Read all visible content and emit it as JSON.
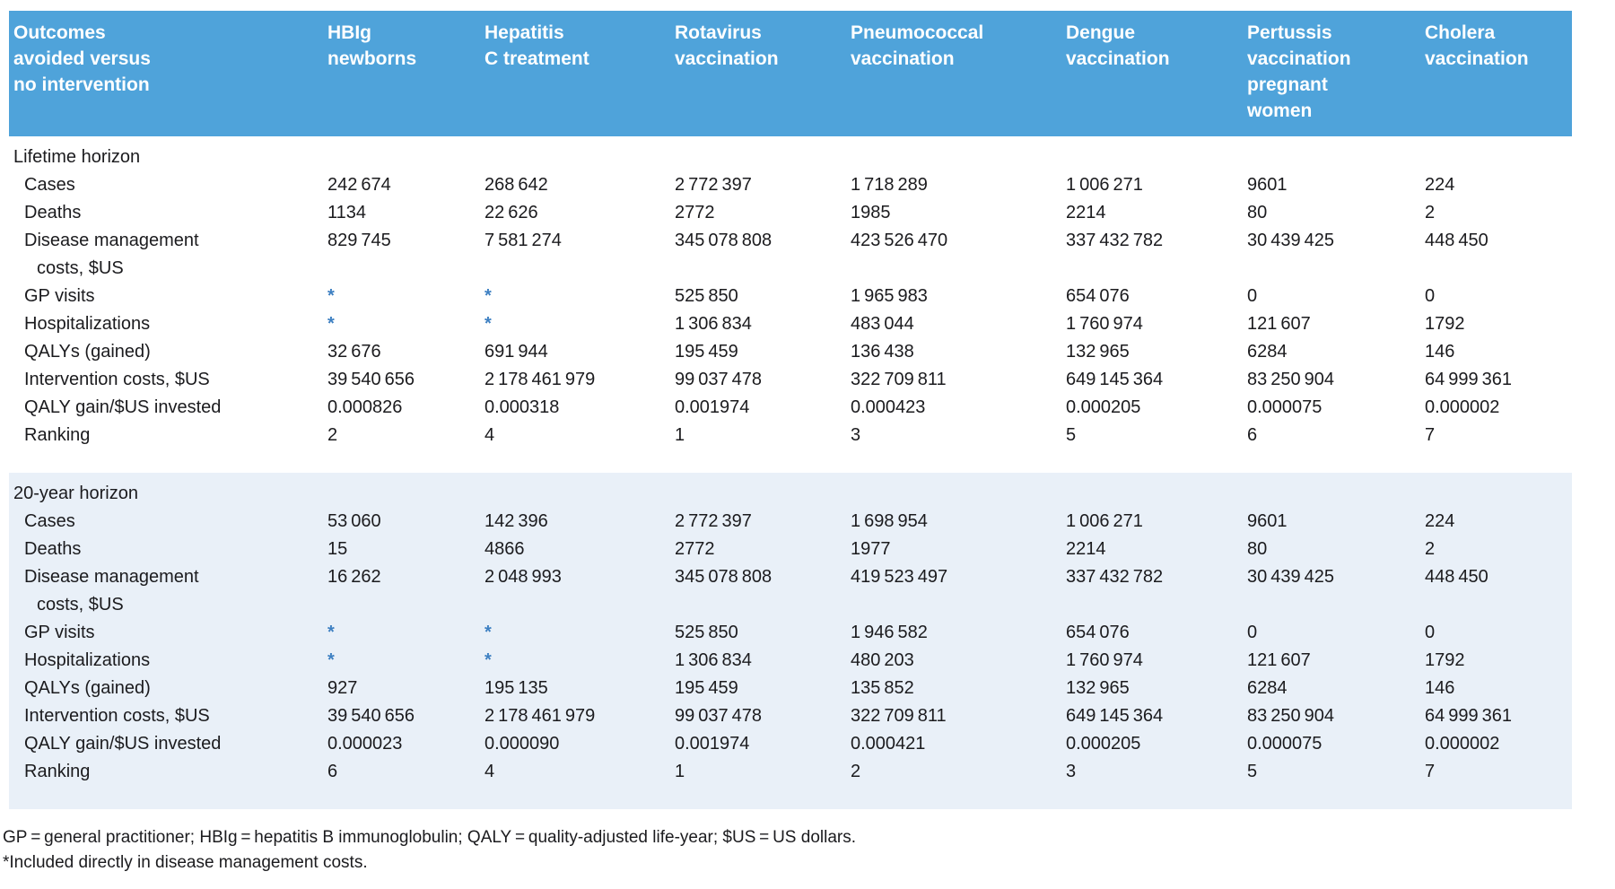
{
  "colors": {
    "header_bg": "#4FA3DA",
    "header_text": "#FFFFFF",
    "section_alt_bg": "#E9F0F8",
    "body_text": "#1B1B1E",
    "asterisk_blue": "#3E80C2"
  },
  "table": {
    "columns": [
      {
        "id": "outcomes",
        "lines": [
          "Outcomes",
          "avoided versus",
          "no intervention"
        ]
      },
      {
        "id": "hbig-newborns",
        "lines": [
          "HBIg",
          "newborns"
        ]
      },
      {
        "id": "hepatitis-c-treatment",
        "lines": [
          "Hepatitis",
          "C treatment"
        ]
      },
      {
        "id": "rotavirus-vaccination",
        "lines": [
          "Rotavirus",
          "vaccination"
        ]
      },
      {
        "id": "pneumococcal-vaccination",
        "lines": [
          "Pneumococcal",
          "vaccination"
        ]
      },
      {
        "id": "dengue-vaccination",
        "lines": [
          "Dengue",
          "vaccination"
        ]
      },
      {
        "id": "pertussis-vaccination-pregnant-women",
        "lines": [
          "Pertussis",
          "vaccination",
          "pregnant",
          "women"
        ]
      },
      {
        "id": "cholera-vaccination",
        "lines": [
          "Cholera",
          "vaccination"
        ]
      }
    ],
    "sections": [
      {
        "id": "lifetime",
        "title": "Lifetime horizon",
        "rows": [
          {
            "id": "cases",
            "label_lines": [
              "Cases"
            ],
            "values": [
              "242 674",
              "268 642",
              "2 772 397",
              "1 718 289",
              "1 006 271",
              "9601",
              "224"
            ]
          },
          {
            "id": "deaths",
            "label_lines": [
              "Deaths"
            ],
            "values": [
              "1134",
              "22 626",
              "2772",
              "1985",
              "2214",
              "80",
              "2"
            ]
          },
          {
            "id": "disease-management-costs",
            "label_lines": [
              "Disease management",
              "costs, $US"
            ],
            "values": [
              "829 745",
              "7 581 274",
              "345 078 808",
              "423 526 470",
              "337 432 782",
              "30 439 425",
              "448 450"
            ]
          },
          {
            "id": "gp-visits",
            "label_lines": [
              "GP visits"
            ],
            "values": [
              "*",
              "*",
              "525 850",
              "1 965 983",
              "654 076",
              "0",
              "0"
            ]
          },
          {
            "id": "hospitalizations",
            "label_lines": [
              "Hospitalizations"
            ],
            "values": [
              "*",
              "*",
              "1 306 834",
              "483 044",
              "1 760 974",
              "121 607",
              "1792"
            ]
          },
          {
            "id": "qalys-gained",
            "label_lines": [
              "QALYs (gained)"
            ],
            "values": [
              "32 676",
              "691 944",
              "195 459",
              "136 438",
              "132 965",
              "6284",
              "146"
            ]
          },
          {
            "id": "intervention-costs",
            "label_lines": [
              "Intervention costs, $US"
            ],
            "values": [
              "39 540 656",
              "2 178 461 979",
              "99 037 478",
              "322 709 811",
              "649 145 364",
              "83 250 904",
              "64 999 361"
            ]
          },
          {
            "id": "qaly-gain-per-usd",
            "label_lines": [
              "QALY gain/$US invested"
            ],
            "values": [
              "0.000826",
              "0.000318",
              "0.001974",
              "0.000423",
              "0.000205",
              "0.000075",
              "0.000002"
            ]
          },
          {
            "id": "ranking",
            "label_lines": [
              "Ranking"
            ],
            "values": [
              "2",
              "4",
              "1",
              "3",
              "5",
              "6",
              "7"
            ]
          }
        ]
      },
      {
        "id": "20-year",
        "title": "20-year horizon",
        "rows": [
          {
            "id": "cases",
            "label_lines": [
              "Cases"
            ],
            "values": [
              "53 060",
              "142 396",
              "2 772 397",
              "1 698 954",
              "1 006 271",
              "9601",
              "224"
            ]
          },
          {
            "id": "deaths",
            "label_lines": [
              "Deaths"
            ],
            "values": [
              "15",
              "4866",
              "2772",
              "1977",
              "2214",
              "80",
              "2"
            ]
          },
          {
            "id": "disease-management-costs",
            "label_lines": [
              "Disease management",
              "costs, $US"
            ],
            "values": [
              "16 262",
              "2 048 993",
              "345 078 808",
              "419 523 497",
              "337 432 782",
              "30 439 425",
              "448 450"
            ]
          },
          {
            "id": "gp-visits",
            "label_lines": [
              "GP visits"
            ],
            "values": [
              "*",
              "*",
              "525 850",
              "1 946 582",
              "654 076",
              "0",
              "0"
            ]
          },
          {
            "id": "hospitalizations",
            "label_lines": [
              "Hospitalizations"
            ],
            "values": [
              "*",
              "*",
              "1 306 834",
              "480 203",
              "1 760 974",
              "121 607",
              "1792"
            ]
          },
          {
            "id": "qalys-gained",
            "label_lines": [
              "QALYs (gained)"
            ],
            "values": [
              "927",
              "195 135",
              "195 459",
              "135 852",
              "132 965",
              "6284",
              "146"
            ]
          },
          {
            "id": "intervention-costs",
            "label_lines": [
              "Intervention costs, $US"
            ],
            "values": [
              "39 540 656",
              "2 178 461 979",
              "99 037 478",
              "322 709 811",
              "649 145 364",
              "83 250 904",
              "64 999 361"
            ]
          },
          {
            "id": "qaly-gain-per-usd",
            "label_lines": [
              "QALY gain/$US invested"
            ],
            "values": [
              "0.000023",
              "0.000090",
              "0.001974",
              "0.000421",
              "0.000205",
              "0.000075",
              "0.000002"
            ]
          },
          {
            "id": "ranking",
            "label_lines": [
              "Ranking"
            ],
            "values": [
              "6",
              "4",
              "1",
              "2",
              "3",
              "5",
              "7"
            ]
          }
        ]
      }
    ]
  },
  "footnotes": {
    "abbreviations": "GP = general practitioner; HBIg = hepatitis B immunoglobulin; QALY = quality-adjusted life-year; $US = US dollars.",
    "asterisk_note": "*Included directly in disease management costs."
  }
}
